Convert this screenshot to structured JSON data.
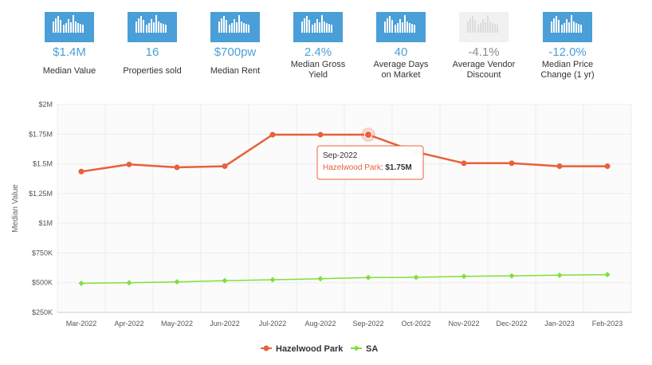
{
  "stats": [
    {
      "value": "$1.4M",
      "label_lines": [
        "Median Value"
      ],
      "disabled": false
    },
    {
      "value": "16",
      "label_lines": [
        "Properties sold"
      ],
      "disabled": false
    },
    {
      "value": "$700pw",
      "label_lines": [
        "Median Rent"
      ],
      "disabled": false
    },
    {
      "value": "2.4%",
      "label_lines": [
        "Median Gross",
        "Yield"
      ],
      "disabled": false
    },
    {
      "value": "40",
      "label_lines": [
        "Average Days",
        "on Market"
      ],
      "disabled": false
    },
    {
      "value": "-4.1%",
      "label_lines": [
        "Average Vendor",
        "Discount"
      ],
      "disabled": true
    },
    {
      "value": "-12.0%",
      "label_lines": [
        "Median Price",
        "Change (1 yr)"
      ],
      "disabled": false
    }
  ],
  "colors": {
    "accent": "#4a9fd8",
    "hazelwood": "#e8603c",
    "sa": "#7ee03c",
    "disabled": "#f1f1f1"
  },
  "chart_data": {
    "type": "line",
    "title": "",
    "xlabel": "",
    "ylabel": "Median Value",
    "categories": [
      "Mar-2022",
      "Apr-2022",
      "May-2022",
      "Jun-2022",
      "Jul-2022",
      "Aug-2022",
      "Sep-2022",
      "Oct-2022",
      "Nov-2022",
      "Dec-2022",
      "Jan-2023",
      "Feb-2023"
    ],
    "ylim": [
      250000,
      2000000
    ],
    "y_ticks": [
      250000,
      500000,
      750000,
      1000000,
      1250000,
      1500000,
      1750000,
      2000000
    ],
    "y_tick_labels": [
      "$250K",
      "$500K",
      "$750K",
      "$1M",
      "$1.25M",
      "$1.5M",
      "$1.75M",
      "$2M"
    ],
    "series": [
      {
        "name": "Hazelwood Park",
        "color": "#e8603c",
        "values": [
          1435000,
          1495000,
          1470000,
          1480000,
          1745000,
          1745000,
          1745000,
          1600000,
          1505000,
          1505000,
          1480000,
          1480000
        ]
      },
      {
        "name": "SA",
        "color": "#7ee03c",
        "values": [
          495000,
          500000,
          507000,
          517000,
          525000,
          533000,
          543000,
          545000,
          553000,
          558000,
          563000,
          568000
        ]
      }
    ],
    "legend_position": "bottom-center",
    "tooltip": {
      "category": "Sep-2022",
      "series": "Hazelwood Park",
      "value_label": "$1.75M"
    }
  }
}
